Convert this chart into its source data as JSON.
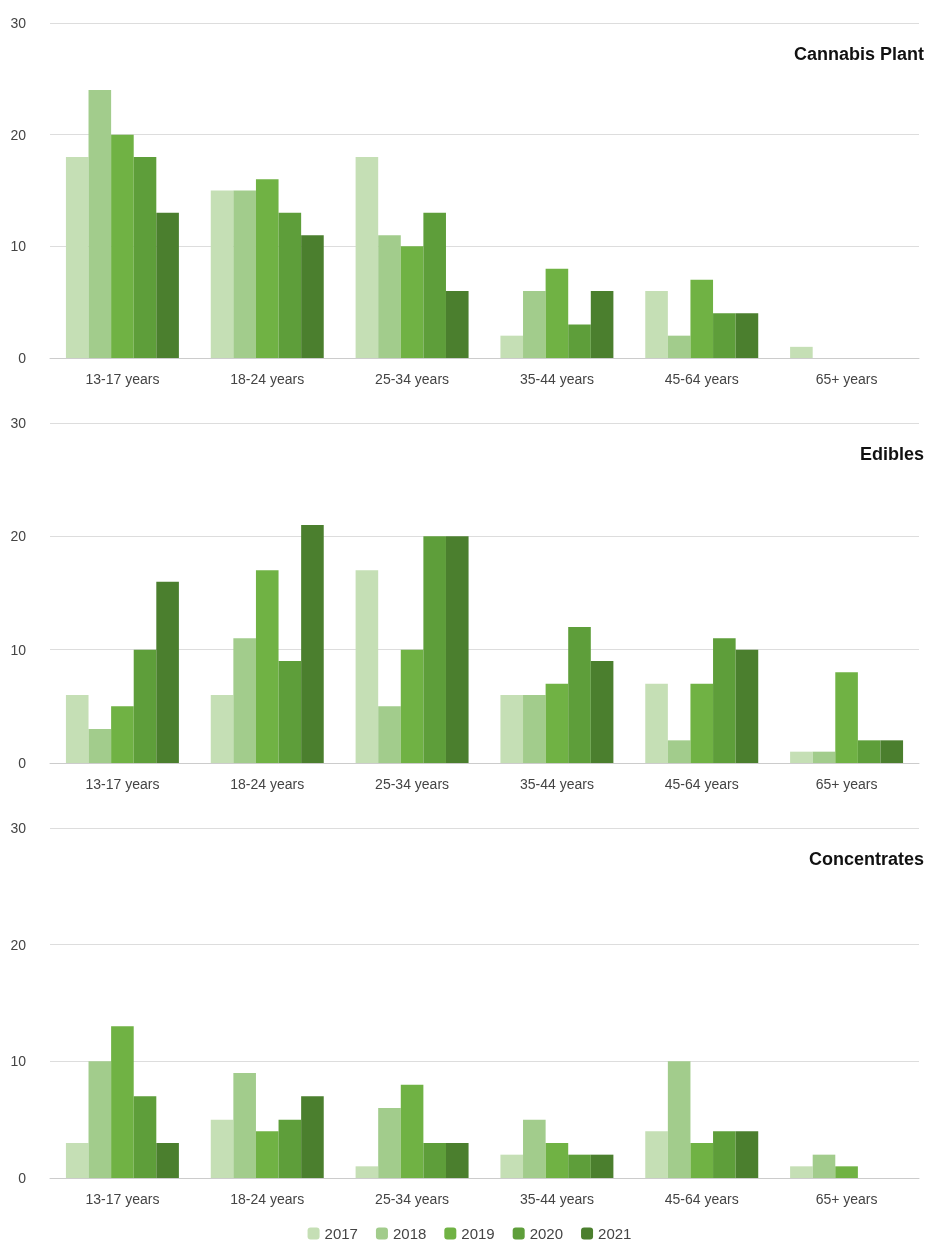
{
  "chart_data": [
    {
      "type": "bar",
      "title": "Cannabis Plant",
      "categories": [
        "13-17 years",
        "18-24 years",
        "25-34 years",
        "35-44 years",
        "45-64 years",
        "65+ years"
      ],
      "ylim": [
        0,
        30
      ],
      "yticks": [
        0,
        10,
        20,
        30
      ],
      "grid": "y",
      "series": [
        {
          "color": "#c5dfb5",
          "values": [
            18,
            15,
            18,
            2,
            6,
            1
          ]
        },
        {
          "color": "#a2cc8c",
          "values": [
            24,
            15,
            11,
            6,
            2,
            0
          ]
        },
        {
          "color": "#70b244",
          "values": [
            20,
            16,
            10,
            8,
            7,
            0
          ]
        },
        {
          "color": "#5e9e3a",
          "values": [
            18,
            13,
            13,
            3,
            4,
            0
          ]
        },
        {
          "color": "#4b7f2e",
          "values": [
            13,
            11,
            6,
            6,
            4,
            0
          ]
        }
      ]
    },
    {
      "type": "bar",
      "title": "Edibles",
      "categories": [
        "13-17 years",
        "18-24 years",
        "25-34 years",
        "35-44 years",
        "45-64 years",
        "65+ years"
      ],
      "ylim": [
        0,
        30
      ],
      "yticks": [
        0,
        10,
        20,
        30
      ],
      "grid": "y",
      "series": [
        {
          "color": "#c5dfb5",
          "values": [
            6,
            6,
            17,
            6,
            7,
            1
          ]
        },
        {
          "color": "#a2cc8c",
          "values": [
            3,
            11,
            5,
            6,
            2,
            1
          ]
        },
        {
          "color": "#70b244",
          "values": [
            5,
            17,
            10,
            7,
            7,
            8
          ]
        },
        {
          "color": "#5e9e3a",
          "values": [
            10,
            9,
            20,
            12,
            11,
            2
          ]
        },
        {
          "color": "#4b7f2e",
          "values": [
            16,
            21,
            20,
            9,
            10,
            2
          ]
        }
      ]
    },
    {
      "type": "bar",
      "title": "Concentrates",
      "categories": [
        "13-17 years",
        "18-24 years",
        "25-34 years",
        "35-44 years",
        "45-64 years",
        "65+ years"
      ],
      "ylim": [
        0,
        30
      ],
      "yticks": [
        0,
        10,
        20,
        30
      ],
      "grid": "y",
      "legend": "bottom",
      "series": [
        {
          "name": "2017",
          "color": "#c5dfb5",
          "values": [
            3,
            5,
            1,
            2,
            4,
            1
          ]
        },
        {
          "name": "2018",
          "color": "#a2cc8c",
          "values": [
            10,
            9,
            6,
            5,
            10,
            2
          ]
        },
        {
          "name": "2019",
          "color": "#70b244",
          "values": [
            13,
            4,
            8,
            3,
            3,
            1
          ]
        },
        {
          "name": "2020",
          "color": "#5e9e3a",
          "values": [
            7,
            5,
            3,
            2,
            4,
            0
          ]
        },
        {
          "name": "2021",
          "color": "#4b7f2e",
          "values": [
            3,
            7,
            3,
            2,
            4,
            0
          ]
        }
      ]
    }
  ]
}
